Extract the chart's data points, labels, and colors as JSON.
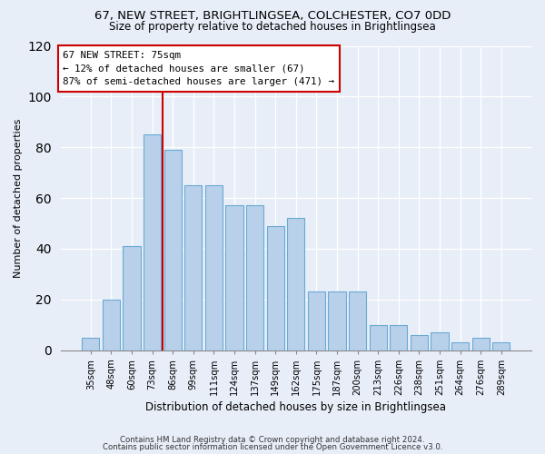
{
  "title1": "67, NEW STREET, BRIGHTLINGSEA, COLCHESTER, CO7 0DD",
  "title2": "Size of property relative to detached houses in Brightlingsea",
  "xlabel": "Distribution of detached houses by size in Brightlingsea",
  "ylabel": "Number of detached properties",
  "categories": [
    "35sqm",
    "48sqm",
    "60sqm",
    "73sqm",
    "86sqm",
    "99sqm",
    "111sqm",
    "124sqm",
    "137sqm",
    "149sqm",
    "162sqm",
    "175sqm",
    "187sqm",
    "200sqm",
    "213sqm",
    "226sqm",
    "238sqm",
    "251sqm",
    "264sqm",
    "276sqm",
    "289sqm"
  ],
  "bar_values": [
    5,
    20,
    41,
    85,
    79,
    65,
    65,
    57,
    57,
    49,
    52,
    23,
    23,
    23,
    10,
    10,
    6,
    7,
    3,
    5,
    3
  ],
  "bar_color": "#b8d0ea",
  "bar_edge_color": "#6aaad4",
  "vline_color": "#cc0000",
  "vline_x": 3.5,
  "annotation_line1": "67 NEW STREET: 75sqm",
  "annotation_line2": "← 12% of detached houses are smaller (67)",
  "annotation_line3": "87% of semi-detached houses are larger (471) →",
  "footer1": "Contains HM Land Registry data © Crown copyright and database right 2024.",
  "footer2": "Contains public sector information licensed under the Open Government Licence v3.0.",
  "ylim": [
    0,
    120
  ],
  "yticks": [
    0,
    20,
    40,
    60,
    80,
    100,
    120
  ],
  "bg_color": "#e8eef8",
  "title1_fontsize": 9.5,
  "title2_fontsize": 8.5
}
